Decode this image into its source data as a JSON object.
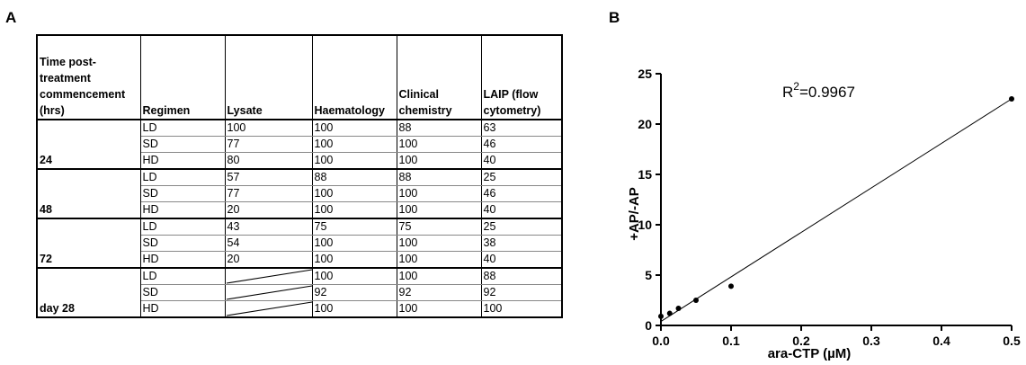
{
  "panel_a": {
    "label": "A",
    "headers": [
      "Time post-treatment commencement (hrs)",
      "Regimen",
      "Lysate",
      "Haematology",
      "Clinical chemistry",
      "LAIP (flow cytometry)"
    ],
    "groups": [
      {
        "time": "24",
        "rows": [
          {
            "regimen": "LD",
            "lysate": "100",
            "haem": "100",
            "chem": "88",
            "laip": "63"
          },
          {
            "regimen": "SD",
            "lysate": "77",
            "haem": "100",
            "chem": "100",
            "laip": "46"
          },
          {
            "regimen": "HD",
            "lysate": "80",
            "haem": "100",
            "chem": "100",
            "laip": "40"
          }
        ]
      },
      {
        "time": "48",
        "rows": [
          {
            "regimen": "LD",
            "lysate": "57",
            "haem": "88",
            "chem": "88",
            "laip": "25"
          },
          {
            "regimen": "SD",
            "lysate": "77",
            "haem": "100",
            "chem": "100",
            "laip": "46"
          },
          {
            "regimen": "HD",
            "lysate": "20",
            "haem": "100",
            "chem": "100",
            "laip": "40"
          }
        ]
      },
      {
        "time": "72",
        "rows": [
          {
            "regimen": "LD",
            "lysate": "43",
            "haem": "75",
            "chem": "75",
            "laip": "25"
          },
          {
            "regimen": "SD",
            "lysate": "54",
            "haem": "100",
            "chem": "100",
            "laip": "38"
          },
          {
            "regimen": "HD",
            "lysate": "20",
            "haem": "100",
            "chem": "100",
            "laip": "40"
          }
        ]
      },
      {
        "time": "day 28",
        "rows": [
          {
            "regimen": "LD",
            "lysate": "",
            "haem": "100",
            "chem": "100",
            "laip": "88"
          },
          {
            "regimen": "SD",
            "lysate": "",
            "haem": "92",
            "chem": "92",
            "laip": "92"
          },
          {
            "regimen": "HD",
            "lysate": "",
            "haem": "100",
            "chem": "100",
            "laip": "100"
          }
        ]
      }
    ]
  },
  "panel_b": {
    "label": "B"
  },
  "chart_data": {
    "type": "scatter",
    "xlabel": "ara-CTP (µM)",
    "ylabel": "+AP/-AP",
    "annotation": {
      "base": "R",
      "sup": "2",
      "rest": "=0.9967"
    },
    "xlim": [
      0,
      0.5
    ],
    "ylim": [
      0,
      25
    ],
    "xticks": [
      "0.0",
      "0.1",
      "0.2",
      "0.3",
      "0.4",
      "0.5"
    ],
    "yticks": [
      "0",
      "5",
      "10",
      "15",
      "20",
      "25"
    ],
    "points": [
      {
        "x": 0.0,
        "y": 0.9
      },
      {
        "x": 0.0125,
        "y": 1.2
      },
      {
        "x": 0.025,
        "y": 1.7
      },
      {
        "x": 0.05,
        "y": 2.5
      },
      {
        "x": 0.1,
        "y": 3.9
      },
      {
        "x": 0.5,
        "y": 22.5
      }
    ],
    "fit_line": {
      "x0": 0.0,
      "y0": 0.4,
      "x1": 0.5,
      "y1": 22.5
    },
    "grid": false
  }
}
